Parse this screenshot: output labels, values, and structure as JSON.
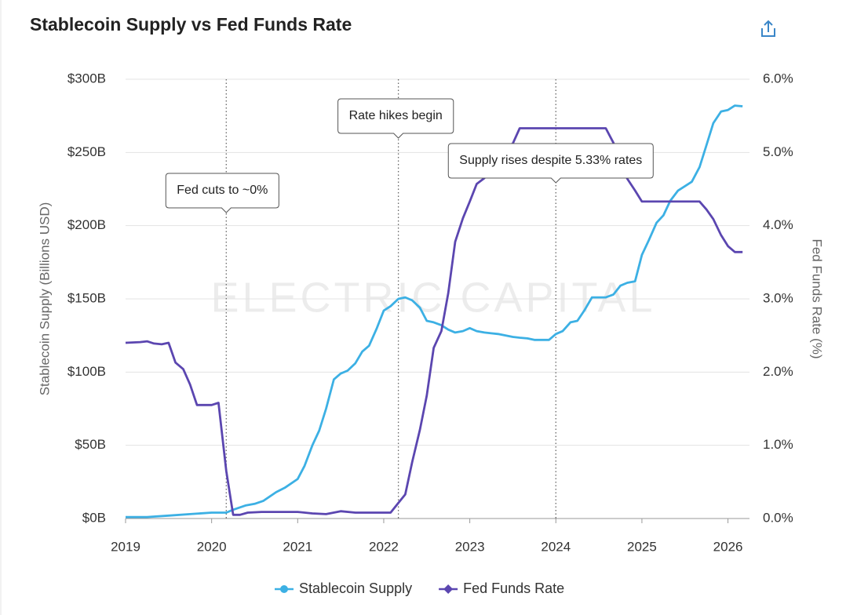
{
  "chart_data": {
    "type": "line",
    "title": "Stablecoin Supply vs Fed Funds Rate",
    "watermark": "ELECTRIC CAPITAL",
    "y_label": "Stablecoin Supply (Billions USD)",
    "y2_label": "Fed Funds Rate (%)",
    "xlim": [
      2019,
      2026.25
    ],
    "xticks": [
      2019,
      2020,
      2021,
      2022,
      2023,
      2024,
      2025,
      2026
    ],
    "ylim": [
      0,
      300
    ],
    "yticks": [
      {
        "value": 0,
        "label": "$0B"
      },
      {
        "value": 50,
        "label": "$50B"
      },
      {
        "value": 100,
        "label": "$100B"
      },
      {
        "value": 150,
        "label": "$150B"
      },
      {
        "value": 200,
        "label": "$200B"
      },
      {
        "value": 250,
        "label": "$250B"
      },
      {
        "value": 300,
        "label": "$300B"
      }
    ],
    "y2lim": [
      0,
      6
    ],
    "y2ticks": [
      {
        "value": 0,
        "label": "0.0%"
      },
      {
        "value": 1,
        "label": "1.0%"
      },
      {
        "value": 2,
        "label": "2.0%"
      },
      {
        "value": 3,
        "label": "3.0%"
      },
      {
        "value": 4,
        "label": "4.0%"
      },
      {
        "value": 5,
        "label": "5.0%"
      },
      {
        "value": 6,
        "label": "6.0%"
      }
    ],
    "grid": true,
    "legend": "bottom",
    "series": [
      {
        "name": "Stablecoin Supply",
        "color": "#3cb0e4",
        "marker": "circle",
        "x": [
          2019.0,
          2019.25,
          2019.5,
          2019.75,
          2020.0,
          2020.17,
          2020.25,
          2020.4,
          2020.5,
          2020.6,
          2020.75,
          2020.85,
          2021.0,
          2021.08,
          2021.17,
          2021.25,
          2021.33,
          2021.42,
          2021.5,
          2021.58,
          2021.67,
          2021.75,
          2021.83,
          2021.92,
          2022.0,
          2022.08,
          2022.17,
          2022.25,
          2022.33,
          2022.42,
          2022.5,
          2022.58,
          2022.67,
          2022.75,
          2022.83,
          2022.92,
          2023.0,
          2023.08,
          2023.17,
          2023.25,
          2023.33,
          2023.42,
          2023.5,
          2023.58,
          2023.67,
          2023.75,
          2023.83,
          2023.92,
          2024.0,
          2024.08,
          2024.17,
          2024.25,
          2024.33,
          2024.42,
          2024.5,
          2024.58,
          2024.67,
          2024.75,
          2024.83,
          2024.92,
          2025.0,
          2025.08,
          2025.17,
          2025.25,
          2025.33,
          2025.42,
          2025.5,
          2025.58,
          2025.67,
          2025.75,
          2025.83,
          2025.92,
          2026.0,
          2026.08,
          2026.17
        ],
        "values": [
          1,
          1,
          2,
          3,
          4,
          4,
          6,
          9,
          10,
          12,
          18,
          21,
          27,
          36,
          50,
          60,
          75,
          95,
          99,
          101,
          106,
          114,
          118,
          130,
          142,
          145,
          150,
          151,
          149,
          144,
          135,
          134,
          132,
          129,
          127,
          128,
          130,
          128,
          127,
          126.5,
          126,
          125,
          124,
          123.5,
          123,
          122,
          122,
          122,
          126,
          128,
          134,
          135,
          142,
          151,
          151,
          151,
          153,
          159,
          161,
          162,
          180,
          190,
          202,
          207,
          217,
          224,
          227,
          230,
          240,
          255,
          270,
          278,
          279,
          282,
          281.5
        ]
      },
      {
        "name": "Fed Funds Rate",
        "color": "#5b46b0",
        "marker": "diamond",
        "axis": "y2",
        "x": [
          2019.0,
          2019.17,
          2019.25,
          2019.33,
          2019.42,
          2019.5,
          2019.58,
          2019.67,
          2019.75,
          2019.83,
          2020.0,
          2020.08,
          2020.17,
          2020.25,
          2020.33,
          2020.42,
          2020.58,
          2020.75,
          2021.0,
          2021.17,
          2021.33,
          2021.5,
          2021.67,
          2022.0,
          2022.08,
          2022.25,
          2022.33,
          2022.42,
          2022.5,
          2022.58,
          2022.67,
          2022.75,
          2022.83,
          2022.92,
          2023.0,
          2023.08,
          2023.17,
          2023.25,
          2023.33,
          2023.42,
          2023.5,
          2023.58,
          2023.75,
          2024.0,
          2024.25,
          2024.5,
          2024.58,
          2024.67,
          2024.75,
          2024.83,
          2024.92,
          2025.0,
          2025.25,
          2025.5,
          2025.67,
          2025.75,
          2025.83,
          2025.92,
          2026.0,
          2026.08,
          2026.17
        ],
        "values": [
          2.4,
          2.41,
          2.42,
          2.39,
          2.38,
          2.4,
          2.13,
          2.04,
          1.83,
          1.55,
          1.55,
          1.58,
          0.65,
          0.05,
          0.05,
          0.08,
          0.09,
          0.09,
          0.09,
          0.07,
          0.06,
          0.1,
          0.08,
          0.08,
          0.08,
          0.33,
          0.77,
          1.21,
          1.68,
          2.33,
          2.56,
          3.08,
          3.78,
          4.1,
          4.33,
          4.57,
          4.65,
          4.83,
          5.06,
          5.08,
          5.12,
          5.33,
          5.33,
          5.33,
          5.33,
          5.33,
          5.33,
          5.13,
          4.83,
          4.64,
          4.48,
          4.33,
          4.33,
          4.33,
          4.33,
          4.22,
          4.09,
          3.87,
          3.72,
          3.64,
          3.64
        ]
      }
    ],
    "annotations": [
      {
        "x": 2020.17,
        "text": "Fed cuts to ~0%"
      },
      {
        "x": 2022.17,
        "text": "Rate hikes begin"
      },
      {
        "x": 2024.0,
        "text": "Supply rises despite 5.33% rates"
      }
    ]
  }
}
